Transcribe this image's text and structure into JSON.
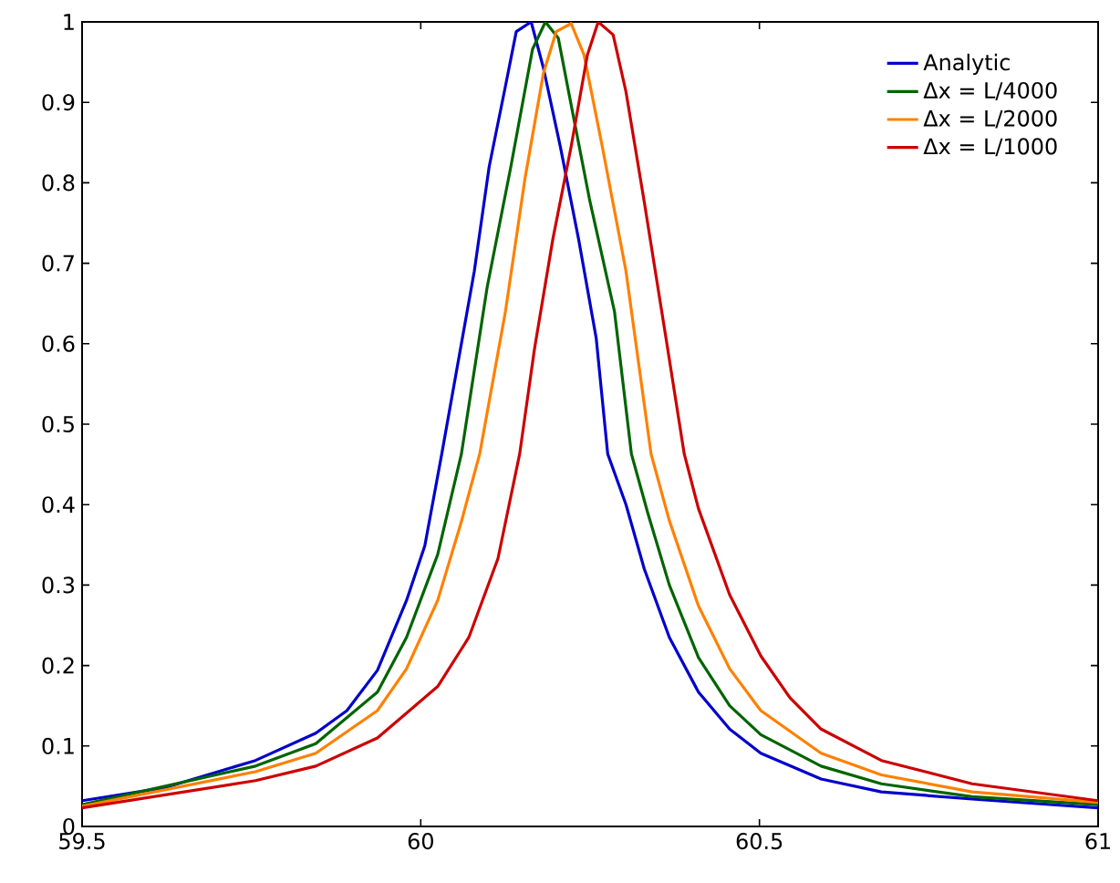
{
  "chart_data": {
    "type": "line",
    "xlim": [
      59.5,
      61
    ],
    "ylim": [
      0,
      1
    ],
    "xticks": [
      59.5,
      60,
      60.5,
      61
    ],
    "yticks": [
      0,
      0.1,
      0.2,
      0.3,
      0.4,
      0.5,
      0.6,
      0.7,
      0.8,
      0.9,
      1
    ],
    "grid": false,
    "legend": "top right",
    "marker": "none",
    "line_style": "solid",
    "series": [
      {
        "name": "Analytic",
        "color": "#0000cc",
        "x": [
          59.5,
          59.621,
          59.756,
          59.845,
          59.891,
          59.936,
          59.979,
          60.006,
          60.031,
          60.079,
          60.101,
          60.125,
          60.141,
          60.163,
          60.181,
          60.206,
          60.233,
          60.259,
          60.276,
          60.303,
          60.33,
          60.367,
          60.41,
          60.456,
          60.502,
          60.591,
          60.68,
          60.814,
          61
        ],
        "values": [
          0.032,
          0.048,
          0.082,
          0.116,
          0.144,
          0.194,
          0.281,
          0.349,
          0.463,
          0.69,
          0.82,
          0.92,
          0.988,
          1.0,
          0.943,
          0.845,
          0.73,
          0.607,
          0.463,
          0.4,
          0.32,
          0.235,
          0.167,
          0.121,
          0.091,
          0.059,
          0.043,
          0.034,
          0.023
        ]
      },
      {
        "name": "Δx = L/4000",
        "color": "#006400",
        "x": [
          59.5,
          59.756,
          59.845,
          59.936,
          59.979,
          60.025,
          60.06,
          60.098,
          60.133,
          60.165,
          60.184,
          60.203,
          60.222,
          60.249,
          60.286,
          60.311,
          60.335,
          60.367,
          60.41,
          60.456,
          60.502,
          60.591,
          60.68,
          60.814,
          61
        ],
        "values": [
          0.027,
          0.075,
          0.103,
          0.167,
          0.235,
          0.338,
          0.463,
          0.67,
          0.82,
          0.966,
          1.0,
          0.98,
          0.897,
          0.78,
          0.64,
          0.463,
          0.39,
          0.3,
          0.21,
          0.15,
          0.114,
          0.075,
          0.053,
          0.037,
          0.027
        ]
      },
      {
        "name": "Δx = L/2000",
        "color": "#ff8000",
        "x": [
          59.5,
          59.756,
          59.845,
          59.936,
          59.979,
          60.025,
          60.06,
          60.087,
          60.125,
          60.154,
          60.181,
          60.2,
          60.222,
          60.241,
          60.268,
          60.303,
          60.34,
          60.367,
          60.41,
          60.456,
          60.502,
          60.591,
          60.68,
          60.814,
          61
        ],
        "values": [
          0.025,
          0.068,
          0.091,
          0.144,
          0.196,
          0.281,
          0.379,
          0.463,
          0.64,
          0.806,
          0.936,
          0.988,
          0.998,
          0.959,
          0.845,
          0.69,
          0.463,
          0.38,
          0.274,
          0.196,
          0.144,
          0.091,
          0.064,
          0.043,
          0.03
        ]
      },
      {
        "name": "Δx = L/1000",
        "color": "#cc0000",
        "x": [
          59.5,
          59.756,
          59.845,
          59.936,
          60.025,
          60.071,
          60.114,
          60.146,
          60.168,
          60.195,
          60.222,
          60.246,
          60.262,
          60.284,
          60.303,
          60.33,
          60.362,
          60.389,
          60.41,
          60.456,
          60.502,
          60.545,
          60.591,
          60.68,
          60.814,
          61
        ],
        "values": [
          0.023,
          0.057,
          0.075,
          0.11,
          0.174,
          0.235,
          0.333,
          0.463,
          0.594,
          0.73,
          0.845,
          0.959,
          1.0,
          0.984,
          0.913,
          0.776,
          0.607,
          0.463,
          0.395,
          0.288,
          0.212,
          0.16,
          0.121,
          0.082,
          0.053,
          0.032
        ]
      }
    ]
  }
}
